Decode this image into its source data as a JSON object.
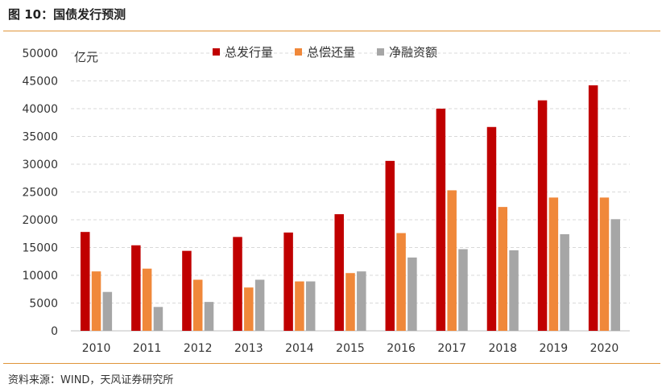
{
  "figure": {
    "title": "图 10：国债发行预测",
    "source": "资料来源：WIND，天风证券研究所"
  },
  "chart_data": {
    "type": "bar",
    "title": "",
    "xlabel": "",
    "ylabel": "亿元",
    "ylim": [
      0,
      50000
    ],
    "yticks": [
      0,
      5000,
      10000,
      15000,
      20000,
      25000,
      30000,
      35000,
      40000,
      45000,
      50000
    ],
    "grid": true,
    "legend_position": "top",
    "categories": [
      "2010",
      "2011",
      "2012",
      "2013",
      "2014",
      "2015",
      "2016",
      "2017",
      "2018",
      "2019",
      "2020"
    ],
    "series": [
      {
        "name": "总发行量",
        "color": "#c00000",
        "values": [
          17800,
          15400,
          14400,
          16900,
          17700,
          21000,
          30600,
          40000,
          36700,
          41500,
          44200
        ]
      },
      {
        "name": "总偿还量",
        "color": "#f0883a",
        "values": [
          10700,
          11200,
          9200,
          7800,
          8900,
          10400,
          17600,
          25300,
          22300,
          24000,
          24000
        ]
      },
      {
        "name": "净融资额",
        "color": "#a6a6a6",
        "values": [
          7000,
          4300,
          5200,
          9200,
          8900,
          10700,
          13200,
          14700,
          14500,
          17400,
          20100
        ]
      }
    ]
  }
}
